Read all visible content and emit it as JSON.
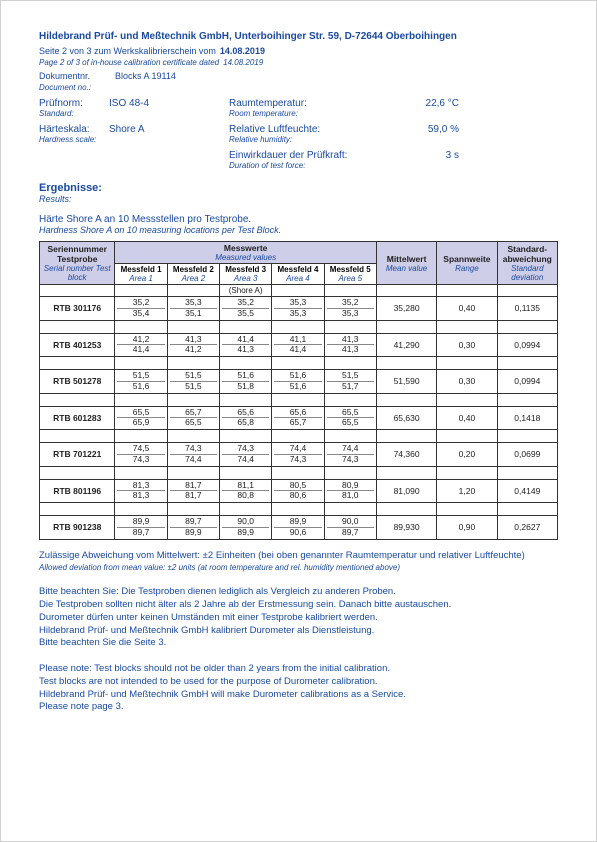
{
  "header": {
    "company": "Hildebrand Prüf- und Meßtechnik GmbH, Unterboihinger Str. 59, D-72644 Oberboihingen",
    "page_de": "Seite 2 von 3 zum Werkskalibrierschein vom",
    "page_date": "14.08.2019",
    "page_en": "Page 2 of 3 of in-house calibration certificate dated",
    "page_en_date": "14.08.2019",
    "doc_label": "Dokumentnr.",
    "doc_value": "Blocks A 19114",
    "doc_en": "Document no.:"
  },
  "info": {
    "pruefnorm_label": "Prüfnorm:",
    "pruefnorm_value": "ISO 48-4",
    "standard_en": "Standard:",
    "raumtemp_label": "Raumtemperatur:",
    "raumtemp_value": "22,6 °C",
    "raumtemp_en": "Room temperature:",
    "haerte_label": "Härteskala:",
    "haerte_value": "Shore A",
    "haerte_en": "Hardness scale:",
    "luft_label": "Relative Luftfeuchte:",
    "luft_value": "59,0 %",
    "luft_en": "Relative humidity:",
    "einwirk_label": "Einwirkdauer der Prüfkraft:",
    "einwirk_value": "3 s",
    "einwirk_en": "Duration of test force:"
  },
  "results": {
    "title": "Ergebnisse:",
    "title_en": "Results:",
    "desc": "Härte Shore A an 10 Messstellen pro Testprobe.",
    "desc_en": "Hardness Shore A on 10 measuring locations per Test Block."
  },
  "table": {
    "headers": {
      "serial": "Seriennummer Testprobe",
      "serial_en": "Serial number Test block",
      "messwerte": "Messwerte",
      "messwerte_en": "Measured values",
      "mittelwert": "Mittelwert",
      "mittelwert_en": "Mean value",
      "spannweite": "Spannweite",
      "spannweite_en": "Range",
      "stdev": "Standard-abweichung",
      "stdev_en": "Standard deviation",
      "mf1": "Messfeld 1",
      "a1": "Area 1",
      "mf2": "Messfeld 2",
      "a2": "Area 2",
      "mf3": "Messfeld 3",
      "a3": "Area 3",
      "mf4": "Messfeld 4",
      "a4": "Area 4",
      "mf5": "Messfeld 5",
      "a5": "Area 5",
      "scale_label": "(Shore A)"
    },
    "rows": [
      {
        "id": "RTB 301176",
        "v": [
          [
            "35,2",
            "35,4"
          ],
          [
            "35,3",
            "35,1"
          ],
          [
            "35,2",
            "35,5"
          ],
          [
            "35,3",
            "35,3"
          ],
          [
            "35,2",
            "35,3"
          ]
        ],
        "mean": "35,280",
        "range": "0,40",
        "std": "0,1135"
      },
      {
        "id": "RTB 401253",
        "v": [
          [
            "41,2",
            "41,4"
          ],
          [
            "41,3",
            "41,2"
          ],
          [
            "41,4",
            "41,3"
          ],
          [
            "41,1",
            "41,4"
          ],
          [
            "41,3",
            "41,3"
          ]
        ],
        "mean": "41,290",
        "range": "0,30",
        "std": "0,0994"
      },
      {
        "id": "RTB 501278",
        "v": [
          [
            "51,5",
            "51,6"
          ],
          [
            "51,5",
            "51,5"
          ],
          [
            "51,6",
            "51,8"
          ],
          [
            "51,6",
            "51,6"
          ],
          [
            "51,5",
            "51,7"
          ]
        ],
        "mean": "51,590",
        "range": "0,30",
        "std": "0,0994"
      },
      {
        "id": "RTB 601283",
        "v": [
          [
            "65,5",
            "65,9"
          ],
          [
            "65,7",
            "65,5"
          ],
          [
            "65,6",
            "65,8"
          ],
          [
            "65,6",
            "65,7"
          ],
          [
            "65,5",
            "65,5"
          ]
        ],
        "mean": "65,630",
        "range": "0,40",
        "std": "0,1418"
      },
      {
        "id": "RTB 701221",
        "v": [
          [
            "74,5",
            "74,3"
          ],
          [
            "74,3",
            "74,4"
          ],
          [
            "74,3",
            "74,4"
          ],
          [
            "74,4",
            "74,3"
          ],
          [
            "74,4",
            "74,3"
          ]
        ],
        "mean": "74,360",
        "range": "0,20",
        "std": "0,0699"
      },
      {
        "id": "RTB 801196",
        "v": [
          [
            "81,3",
            "81,3"
          ],
          [
            "81,7",
            "81,7"
          ],
          [
            "81,1",
            "80,8"
          ],
          [
            "80,5",
            "80,6"
          ],
          [
            "80,9",
            "81,0"
          ]
        ],
        "mean": "81,090",
        "range": "1,20",
        "std": "0,4149"
      },
      {
        "id": "RTB 901238",
        "v": [
          [
            "89,9",
            "89,7"
          ],
          [
            "89,7",
            "89,9"
          ],
          [
            "90,0",
            "89,9"
          ],
          [
            "89,9",
            "90,6"
          ],
          [
            "90,0",
            "89,7"
          ]
        ],
        "mean": "89,930",
        "range": "0,90",
        "std": "0,2627"
      }
    ]
  },
  "notes": {
    "tol_de": "Zulässige Abweichung vom Mittelwert: ±2 Einheiten (bei oben genannter Raumtemperatur und relativer Luftfeuchte)",
    "tol_en": "Allowed deviation from mean value: ±2 units  (at room temperature and rel. humidity mentioned above)",
    "de1": "Bitte beachten Sie: Die Testproben dienen lediglich als Vergleich zu anderen Proben.",
    "de2": "Die Testproben sollten nicht älter als 2 Jahre ab der Erstmessung sein. Danach bitte austauschen.",
    "de3": "Durometer dürfen unter keinen Umständen mit einer Testprobe kalibriert werden.",
    "de4": "Hildebrand Prüf- und Meßtechnik GmbH kalibriert Durometer als Dienstleistung.",
    "de5": "Bitte beachten Sie die Seite 3.",
    "en1": "Please note: Test blocks should not be older than 2 years from the initial calibration.",
    "en2": "Test blocks are not intended to be used for the purpose of Durometer calibration.",
    "en3": "Hildebrand Prüf- und Meßtechnik GmbH will make Durometer calibrations as a Service.",
    "en4": "Please note page 3."
  }
}
